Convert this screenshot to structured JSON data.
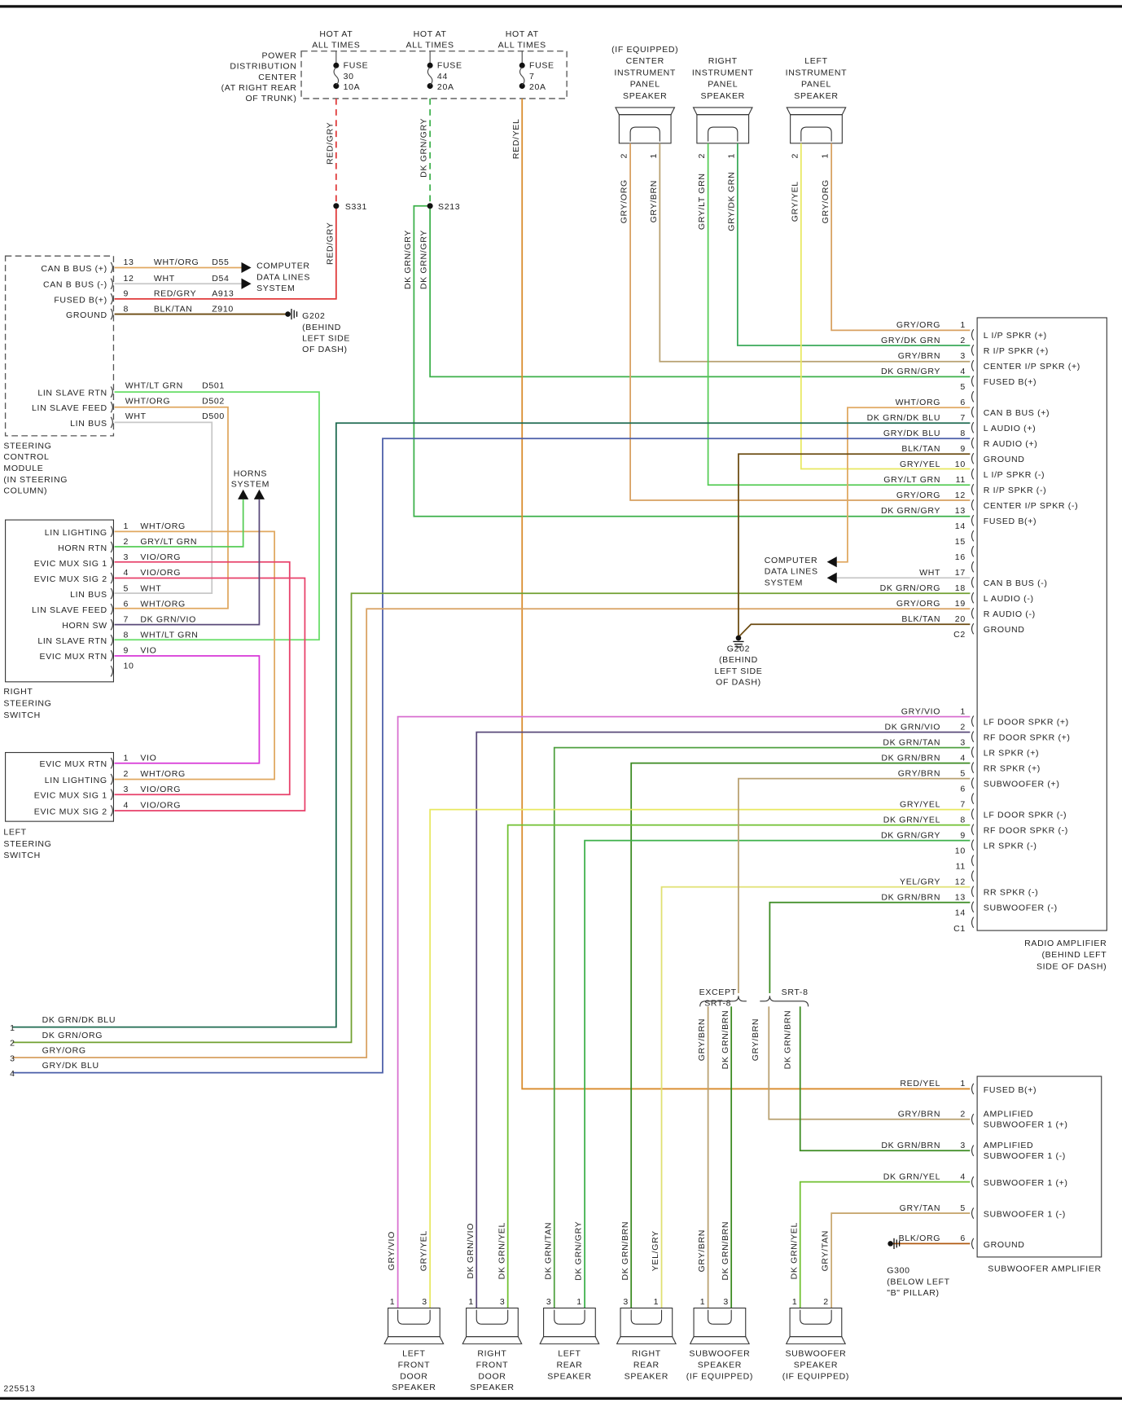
{
  "figure_id": "225513",
  "pdc": {
    "label": [
      "POWER",
      "DISTRIBUTION",
      "CENTER",
      "(AT RIGHT REAR",
      "OF TRUNK)"
    ],
    "fuses": [
      {
        "hot": "HOT AT",
        "hot2": "ALL TIMES",
        "fuse": "FUSE",
        "number": "30",
        "rating": "10A"
      },
      {
        "hot": "HOT AT",
        "hot2": "ALL TIMES",
        "fuse": "FUSE",
        "number": "44",
        "rating": "20A"
      },
      {
        "hot": "HOT AT",
        "hot2": "ALL TIMES",
        "fuse": "FUSE",
        "number": "7",
        "rating": "20A"
      }
    ]
  },
  "splices": {
    "s331": "S331",
    "s213": "S213"
  },
  "feed_wires": {
    "fuse30": "RED/GRY",
    "fuse44": "DK GRN/GRY",
    "fuse44_branch": "DK GRN/GRY",
    "fuse7": "RED/YEL"
  },
  "scm": {
    "label": [
      "STEERING",
      "CONTROL",
      "MODULE",
      "(IN STEERING",
      "COLUMN)"
    ],
    "pins": [
      {
        "func": "CAN B BUS (+)",
        "pin": "13",
        "wire": "WHT/ORG",
        "circuit": "D55"
      },
      {
        "func": "CAN B BUS (-)",
        "pin": "12",
        "wire": "WHT",
        "circuit": "D54"
      },
      {
        "func": "FUSED B(+)",
        "pin": "9",
        "wire": "RED/GRY",
        "circuit": "A913"
      },
      {
        "func": "GROUND",
        "pin": "8",
        "wire": "BLK/TAN",
        "circuit": "Z910"
      }
    ],
    "lin": [
      {
        "func": "LIN SLAVE RTN",
        "wire": "WHT/LT GRN",
        "circuit": "D501"
      },
      {
        "func": "LIN SLAVE FEED",
        "wire": "WHT/ORG",
        "circuit": "D502"
      },
      {
        "func": "LIN BUS",
        "wire": "WHT",
        "circuit": "D500"
      }
    ]
  },
  "data_lines": [
    "COMPUTER",
    "DATA LINES",
    "SYSTEM"
  ],
  "g202": [
    "G202",
    "(BEHIND",
    "LEFT SIDE",
    "OF DASH)"
  ],
  "horns": [
    "HORNS",
    "SYSTEM"
  ],
  "right_switch": {
    "label": [
      "RIGHT",
      "STEERING",
      "SWITCH"
    ],
    "pins": [
      {
        "pin": "1",
        "func": "LIN LIGHTING",
        "wire": "WHT/ORG"
      },
      {
        "pin": "2",
        "func": "HORN RTN",
        "wire": "GRY/LT GRN"
      },
      {
        "pin": "3",
        "func": "EVIC MUX SIG 1",
        "wire": "VIO/ORG"
      },
      {
        "pin": "4",
        "func": "EVIC MUX SIG 2",
        "wire": "VIO/ORG"
      },
      {
        "pin": "5",
        "func": "LIN BUS",
        "wire": "WHT"
      },
      {
        "pin": "6",
        "func": "LIN SLAVE FEED",
        "wire": "WHT/ORG"
      },
      {
        "pin": "7",
        "func": "HORN SW",
        "wire": "DK GRN/VIO"
      },
      {
        "pin": "8",
        "func": "LIN SLAVE RTN",
        "wire": "WHT/LT GRN"
      },
      {
        "pin": "9",
        "func": "EVIC MUX RTN",
        "wire": "VIO"
      },
      {
        "pin": "10",
        "func": "",
        "wire": ""
      }
    ]
  },
  "left_switch": {
    "label": [
      "LEFT",
      "STEERING",
      "SWITCH"
    ],
    "pins": [
      {
        "pin": "1",
        "func": "EVIC MUX RTN",
        "wire": "VIO"
      },
      {
        "pin": "2",
        "func": "LIN LIGHTING",
        "wire": "WHT/ORG"
      },
      {
        "pin": "3",
        "func": "EVIC MUX SIG 1",
        "wire": "VIO/ORG"
      },
      {
        "pin": "4",
        "func": "EVIC MUX SIG 2",
        "wire": "VIO/ORG"
      }
    ]
  },
  "ip_speakers": [
    {
      "label": [
        "(IF EQUIPPED)",
        "CENTER",
        "INSTRUMENT",
        "PANEL",
        "SPEAKER"
      ],
      "pins": [
        {
          "pin": "2",
          "wire": "GRY/ORG"
        },
        {
          "pin": "1",
          "wire": "GRY/BRN"
        }
      ]
    },
    {
      "label": [
        "RIGHT",
        "INSTRUMENT",
        "PANEL",
        "SPEAKER"
      ],
      "pins": [
        {
          "pin": "2",
          "wire": "GRY/LT GRN"
        },
        {
          "pin": "1",
          "wire": "GRY/DK GRN"
        }
      ]
    },
    {
      "label": [
        "LEFT",
        "INSTRUMENT",
        "PANEL",
        "SPEAKER"
      ],
      "pins": [
        {
          "pin": "2",
          "wire": "GRY/YEL"
        },
        {
          "pin": "1",
          "wire": "GRY/ORG"
        }
      ]
    }
  ],
  "radio_amp": {
    "label": [
      "RADIO AMPLIFIER",
      "(BEHIND LEFT",
      "SIDE OF DASH)"
    ],
    "c2": {
      "name": "C2",
      "pins": [
        {
          "pin": "1",
          "wire": "GRY/ORG",
          "func": "L I/P SPKR (+)"
        },
        {
          "pin": "2",
          "wire": "GRY/DK GRN",
          "func": "R I/P SPKR (+)"
        },
        {
          "pin": "3",
          "wire": "GRY/BRN",
          "func": "CENTER I/P SPKR (+)"
        },
        {
          "pin": "4",
          "wire": "DK GRN/GRY",
          "func": "FUSED B(+)"
        },
        {
          "pin": "5",
          "wire": "",
          "func": ""
        },
        {
          "pin": "6",
          "wire": "WHT/ORG",
          "func": "CAN B BUS (+)"
        },
        {
          "pin": "7",
          "wire": "DK GRN/DK BLU",
          "func": "L AUDIO (+)"
        },
        {
          "pin": "8",
          "wire": "GRY/DK BLU",
          "func": "R AUDIO (+)"
        },
        {
          "pin": "9",
          "wire": "BLK/TAN",
          "func": "GROUND"
        },
        {
          "pin": "10",
          "wire": "GRY/YEL",
          "func": "L I/P SPKR (-)"
        },
        {
          "pin": "11",
          "wire": "GRY/LT GRN",
          "func": "R I/P SPKR (-)"
        },
        {
          "pin": "12",
          "wire": "GRY/ORG",
          "func": "CENTER I/P SPKR (-)"
        },
        {
          "pin": "13",
          "wire": "DK GRN/GRY",
          "func": "FUSED B(+)"
        },
        {
          "pin": "14",
          "wire": "",
          "func": ""
        },
        {
          "pin": "15",
          "wire": "",
          "func": ""
        },
        {
          "pin": "16",
          "wire": "",
          "func": ""
        },
        {
          "pin": "17",
          "wire": "WHT",
          "func": "CAN B BUS (-)"
        },
        {
          "pin": "18",
          "wire": "DK GRN/ORG",
          "func": "L AUDIO (-)"
        },
        {
          "pin": "19",
          "wire": "GRY/ORG",
          "func": "R AUDIO (-)"
        },
        {
          "pin": "20",
          "wire": "BLK/TAN",
          "func": "GROUND"
        }
      ]
    },
    "c1": {
      "name": "C1",
      "pins": [
        {
          "pin": "1",
          "wire": "GRY/VIO",
          "func": "LF DOOR SPKR (+)"
        },
        {
          "pin": "2",
          "wire": "DK GRN/VIO",
          "func": "RF DOOR SPKR (+)"
        },
        {
          "pin": "3",
          "wire": "DK GRN/TAN",
          "func": "LR SPKR (+)"
        },
        {
          "pin": "4",
          "wire": "DK GRN/BRN",
          "func": "RR SPKR (+)"
        },
        {
          "pin": "5",
          "wire": "GRY/BRN",
          "func": "SUBWOOFER (+)"
        },
        {
          "pin": "6",
          "wire": "",
          "func": ""
        },
        {
          "pin": "7",
          "wire": "GRY/YEL",
          "func": "LF DOOR SPKR (-)"
        },
        {
          "pin": "8",
          "wire": "DK GRN/YEL",
          "func": "RF DOOR SPKR (-)"
        },
        {
          "pin": "9",
          "wire": "DK GRN/GRY",
          "func": "LR SPKR  (-)"
        },
        {
          "pin": "10",
          "wire": "",
          "func": ""
        },
        {
          "pin": "11",
          "wire": "",
          "func": ""
        },
        {
          "pin": "12",
          "wire": "YEL/GRY",
          "func": "RR SPKR  (-)"
        },
        {
          "pin": "13",
          "wire": "DK GRN/BRN",
          "func": "SUBWOOFER (-)"
        },
        {
          "pin": "14",
          "wire": "",
          "func": ""
        }
      ]
    }
  },
  "harness": [
    {
      "pin": "1",
      "wire": "DK GRN/DK BLU"
    },
    {
      "pin": "2",
      "wire": "DK GRN/ORG"
    },
    {
      "pin": "3",
      "wire": "GRY/ORG"
    },
    {
      "pin": "4",
      "wire": "GRY/DK BLU"
    }
  ],
  "variants": {
    "except": [
      "EXCEPT",
      "SRT-8"
    ],
    "srt8": "SRT-8",
    "wires": [
      "GRY/BRN",
      "DK GRN/BRN",
      "GRY/BRN",
      "DK GRN/BRN"
    ]
  },
  "sub_amp": {
    "label": "SUBWOOFER AMPLIFIER",
    "pins": [
      {
        "pin": "1",
        "wire": "RED/YEL",
        "func": [
          "FUSED B(+)"
        ]
      },
      {
        "pin": "2",
        "wire": "GRY/BRN",
        "func": [
          "AMPLIFIED",
          "SUBWOOFER 1 (+)"
        ]
      },
      {
        "pin": "3",
        "wire": "DK GRN/BRN",
        "func": [
          "AMPLIFIED",
          "SUBWOOFER 1 (-)"
        ]
      },
      {
        "pin": "4",
        "wire": "DK GRN/YEL",
        "func": [
          "SUBWOOFER 1 (+)"
        ]
      },
      {
        "pin": "5",
        "wire": "GRY/TAN",
        "func": [
          "SUBWOOFER 1 (-)"
        ]
      },
      {
        "pin": "6",
        "wire": "BLK/ORG",
        "func": [
          "GROUND"
        ]
      }
    ]
  },
  "g300": [
    "G300",
    "(BELOW LEFT",
    "\"B\" PILLAR)"
  ],
  "bottom_speakers": [
    {
      "label": [
        "LEFT",
        "FRONT",
        "DOOR",
        "SPEAKER"
      ],
      "pins": [
        {
          "pin": "1",
          "wire": "GRY/VIO"
        },
        {
          "pin": "3",
          "wire": "GRY/YEL"
        }
      ]
    },
    {
      "label": [
        "RIGHT",
        "FRONT",
        "DOOR",
        "SPEAKER"
      ],
      "pins": [
        {
          "pin": "1",
          "wire": "DK GRN/VIO"
        },
        {
          "pin": "3",
          "wire": "DK GRN/YEL"
        }
      ]
    },
    {
      "label": [
        "LEFT",
        "REAR",
        "SPEAKER"
      ],
      "pins": [
        {
          "pin": "3",
          "wire": "DK GRN/TAN"
        },
        {
          "pin": "1",
          "wire": "DK GRN/GRY"
        }
      ]
    },
    {
      "label": [
        "RIGHT",
        "REAR",
        "SPEAKER"
      ],
      "pins": [
        {
          "pin": "3",
          "wire": "DK GRN/BRN"
        },
        {
          "pin": "1",
          "wire": "YEL/GRY"
        }
      ]
    },
    {
      "label": [
        "SUBWOOFER",
        "SPEAKER",
        "(IF EQUIPPED)"
      ],
      "pins": [
        {
          "pin": "1",
          "wire": "GRY/BRN"
        },
        {
          "pin": "3",
          "wire": "DK GRN/BRN"
        }
      ]
    },
    {
      "label": [
        "SUBWOOFER",
        "SPEAKER",
        "(IF EQUIPPED)"
      ],
      "pins": [
        {
          "pin": "1",
          "wire": "DK GRN/YEL"
        },
        {
          "pin": "2",
          "wire": "GRY/TAN"
        }
      ]
    }
  ],
  "colors": {
    "RED/GRY": "#e03a3a",
    "DK GRN/GRY": "#3cb04a",
    "RED/YEL": "#d98a2a",
    "WHT/ORG": "#e0a860",
    "WHT": "#c8c8c8",
    "BLK/TAN": "#6b4a10",
    "WHT/LT GRN": "#66dd66",
    "GRY/LT GRN": "#55cc55",
    "VIO/ORG": "#e8406a",
    "DK GRN/VIO": "#5a4a7a",
    "VIO": "#d838d8",
    "GRY/ORG": "#d8a060",
    "GRY/BRN": "#b8a070",
    "GRY/DK GRN": "#3aaa5a",
    "GRY/YEL": "#e8e860",
    "DK GRN/DK BLU": "#1e6a50",
    "GRY/DK BLU": "#4a5ea8",
    "DK GRN/ORG": "#70a030",
    "GRY/VIO": "#d870d0",
    "DK GRN/TAN": "#50a040",
    "DK GRN/BRN": "#3a8a20",
    "DK GRN/YEL": "#70c030",
    "YEL/GRY": "#e0e070",
    "GRY/TAN": "#c8a870",
    "BLK/ORG": "#b05a10",
    "outline": "#333333"
  }
}
